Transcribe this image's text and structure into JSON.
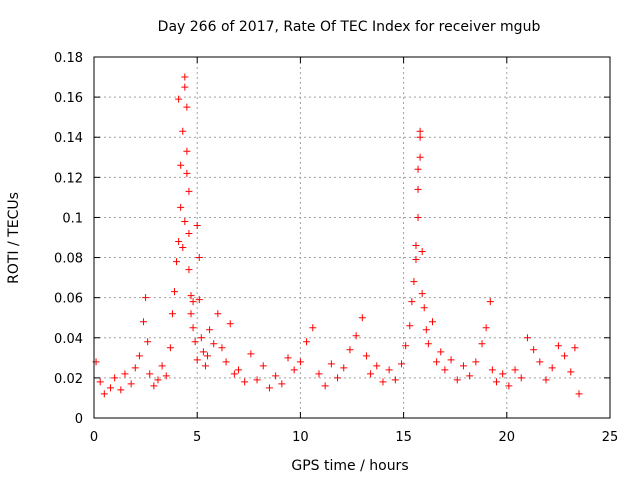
{
  "chart_data": {
    "type": "scatter",
    "title": "Day 266 of 2017, Rate Of TEC Index for receiver mgub",
    "xlabel": "GPS time / hours",
    "ylabel": "ROTI / TECUs",
    "xlim": [
      0,
      25
    ],
    "ylim": [
      0,
      0.18
    ],
    "xticks": [
      "0",
      "5",
      "10",
      "15",
      "20",
      "25"
    ],
    "yticks": [
      "0",
      "0.02",
      "0.04",
      "0.06",
      "0.08",
      "0.1",
      "0.12",
      "0.14",
      "0.16",
      "0.18"
    ],
    "grid": true,
    "marker": "+",
    "color": "#ff0000",
    "series": [
      {
        "x": [
          0.1,
          0.3,
          0.5,
          0.8,
          1.0,
          1.3,
          1.5,
          1.8,
          2.0,
          2.2,
          2.4,
          2.5,
          2.6,
          2.7,
          2.9,
          3.1,
          3.3,
          3.5,
          3.7,
          3.8,
          3.9,
          4.0,
          4.1,
          4.1,
          4.2,
          4.2,
          4.3,
          4.3,
          4.4,
          4.4,
          4.4,
          4.5,
          4.5,
          4.5,
          4.6,
          4.6,
          4.6,
          4.7,
          4.7,
          4.8,
          4.8,
          4.9,
          5.0,
          5.0,
          5.1,
          5.1,
          5.2,
          5.3,
          5.4,
          5.5,
          5.6,
          5.8,
          6.0,
          6.2,
          6.4,
          6.6,
          6.8,
          7.0,
          7.3,
          7.6,
          7.9,
          8.2,
          8.5,
          8.8,
          9.1,
          9.4,
          9.7,
          10.0,
          10.3,
          10.6,
          10.9,
          11.2,
          11.5,
          11.8,
          12.1,
          12.4,
          12.7,
          13.0,
          13.2,
          13.4,
          13.7,
          14.0,
          14.3,
          14.6,
          14.9,
          15.1,
          15.3,
          15.4,
          15.5,
          15.6,
          15.6,
          15.7,
          15.7,
          15.7,
          15.8,
          15.8,
          15.8,
          15.9,
          15.9,
          16.0,
          16.1,
          16.2,
          16.4,
          16.6,
          16.8,
          17.0,
          17.3,
          17.6,
          17.9,
          18.2,
          18.5,
          18.8,
          19.0,
          19.2,
          19.3,
          19.5,
          19.8,
          20.1,
          20.4,
          20.7,
          21.0,
          21.3,
          21.6,
          21.9,
          22.2,
          22.5,
          22.8,
          23.1,
          23.3,
          23.5
        ],
        "y": [
          0.028,
          0.018,
          0.012,
          0.015,
          0.02,
          0.014,
          0.022,
          0.017,
          0.025,
          0.031,
          0.048,
          0.06,
          0.038,
          0.022,
          0.016,
          0.019,
          0.026,
          0.021,
          0.035,
          0.052,
          0.063,
          0.078,
          0.088,
          0.159,
          0.105,
          0.126,
          0.143,
          0.085,
          0.165,
          0.17,
          0.098,
          0.155,
          0.122,
          0.133,
          0.113,
          0.092,
          0.074,
          0.061,
          0.052,
          0.045,
          0.058,
          0.038,
          0.029,
          0.096,
          0.08,
          0.059,
          0.04,
          0.033,
          0.026,
          0.031,
          0.044,
          0.037,
          0.052,
          0.035,
          0.028,
          0.047,
          0.022,
          0.024,
          0.018,
          0.032,
          0.019,
          0.026,
          0.015,
          0.021,
          0.017,
          0.03,
          0.024,
          0.028,
          0.038,
          0.045,
          0.022,
          0.016,
          0.027,
          0.02,
          0.025,
          0.034,
          0.041,
          0.05,
          0.031,
          0.022,
          0.026,
          0.018,
          0.024,
          0.019,
          0.027,
          0.036,
          0.046,
          0.058,
          0.068,
          0.079,
          0.086,
          0.1,
          0.114,
          0.124,
          0.13,
          0.14,
          0.143,
          0.083,
          0.062,
          0.055,
          0.044,
          0.037,
          0.048,
          0.028,
          0.033,
          0.024,
          0.029,
          0.019,
          0.026,
          0.021,
          0.028,
          0.037,
          0.045,
          0.058,
          0.024,
          0.018,
          0.022,
          0.016,
          0.024,
          0.02,
          0.04,
          0.034,
          0.028,
          0.019,
          0.025,
          0.036,
          0.031,
          0.023,
          0.035,
          0.012
        ]
      }
    ]
  }
}
